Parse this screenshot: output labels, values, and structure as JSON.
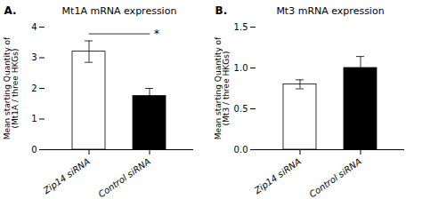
{
  "chart_data": [
    {
      "type": "bar",
      "title": "Mt1A mRNA expression",
      "panel_label": "A.",
      "ylabel": "Mean starting Quantity of\n(Mt1A / three HKGs)",
      "categories": [
        "Zip14 siRNA",
        "Control siRNA"
      ],
      "values": [
        3.2,
        1.75
      ],
      "errors": [
        0.35,
        0.25
      ],
      "colors": [
        "white",
        "black"
      ],
      "ylim": [
        0,
        4
      ],
      "yticks": [
        0,
        1,
        2,
        3,
        4
      ],
      "annotations": [
        {
          "text": "*",
          "y": 3.78,
          "x": [
            "Zip14 siRNA",
            "Control siRNA"
          ]
        }
      ]
    },
    {
      "type": "bar",
      "title": "Mt3 mRNA expression",
      "panel_label": "B.",
      "ylabel": "Mean starting Quantity of\n(Mt3 / three HKGs)",
      "categories": [
        "Zip14 siRNA",
        "Control siRNA"
      ],
      "values": [
        0.8,
        1.0
      ],
      "errors": [
        0.055,
        0.14
      ],
      "colors": [
        "white",
        "black"
      ],
      "ylim": [
        0,
        1.5
      ],
      "yticks": [
        {
          "value": 0,
          "label": "0.0"
        },
        0.5,
        {
          "value": 1,
          "label": "1.0"
        },
        1.5
      ]
    }
  ]
}
